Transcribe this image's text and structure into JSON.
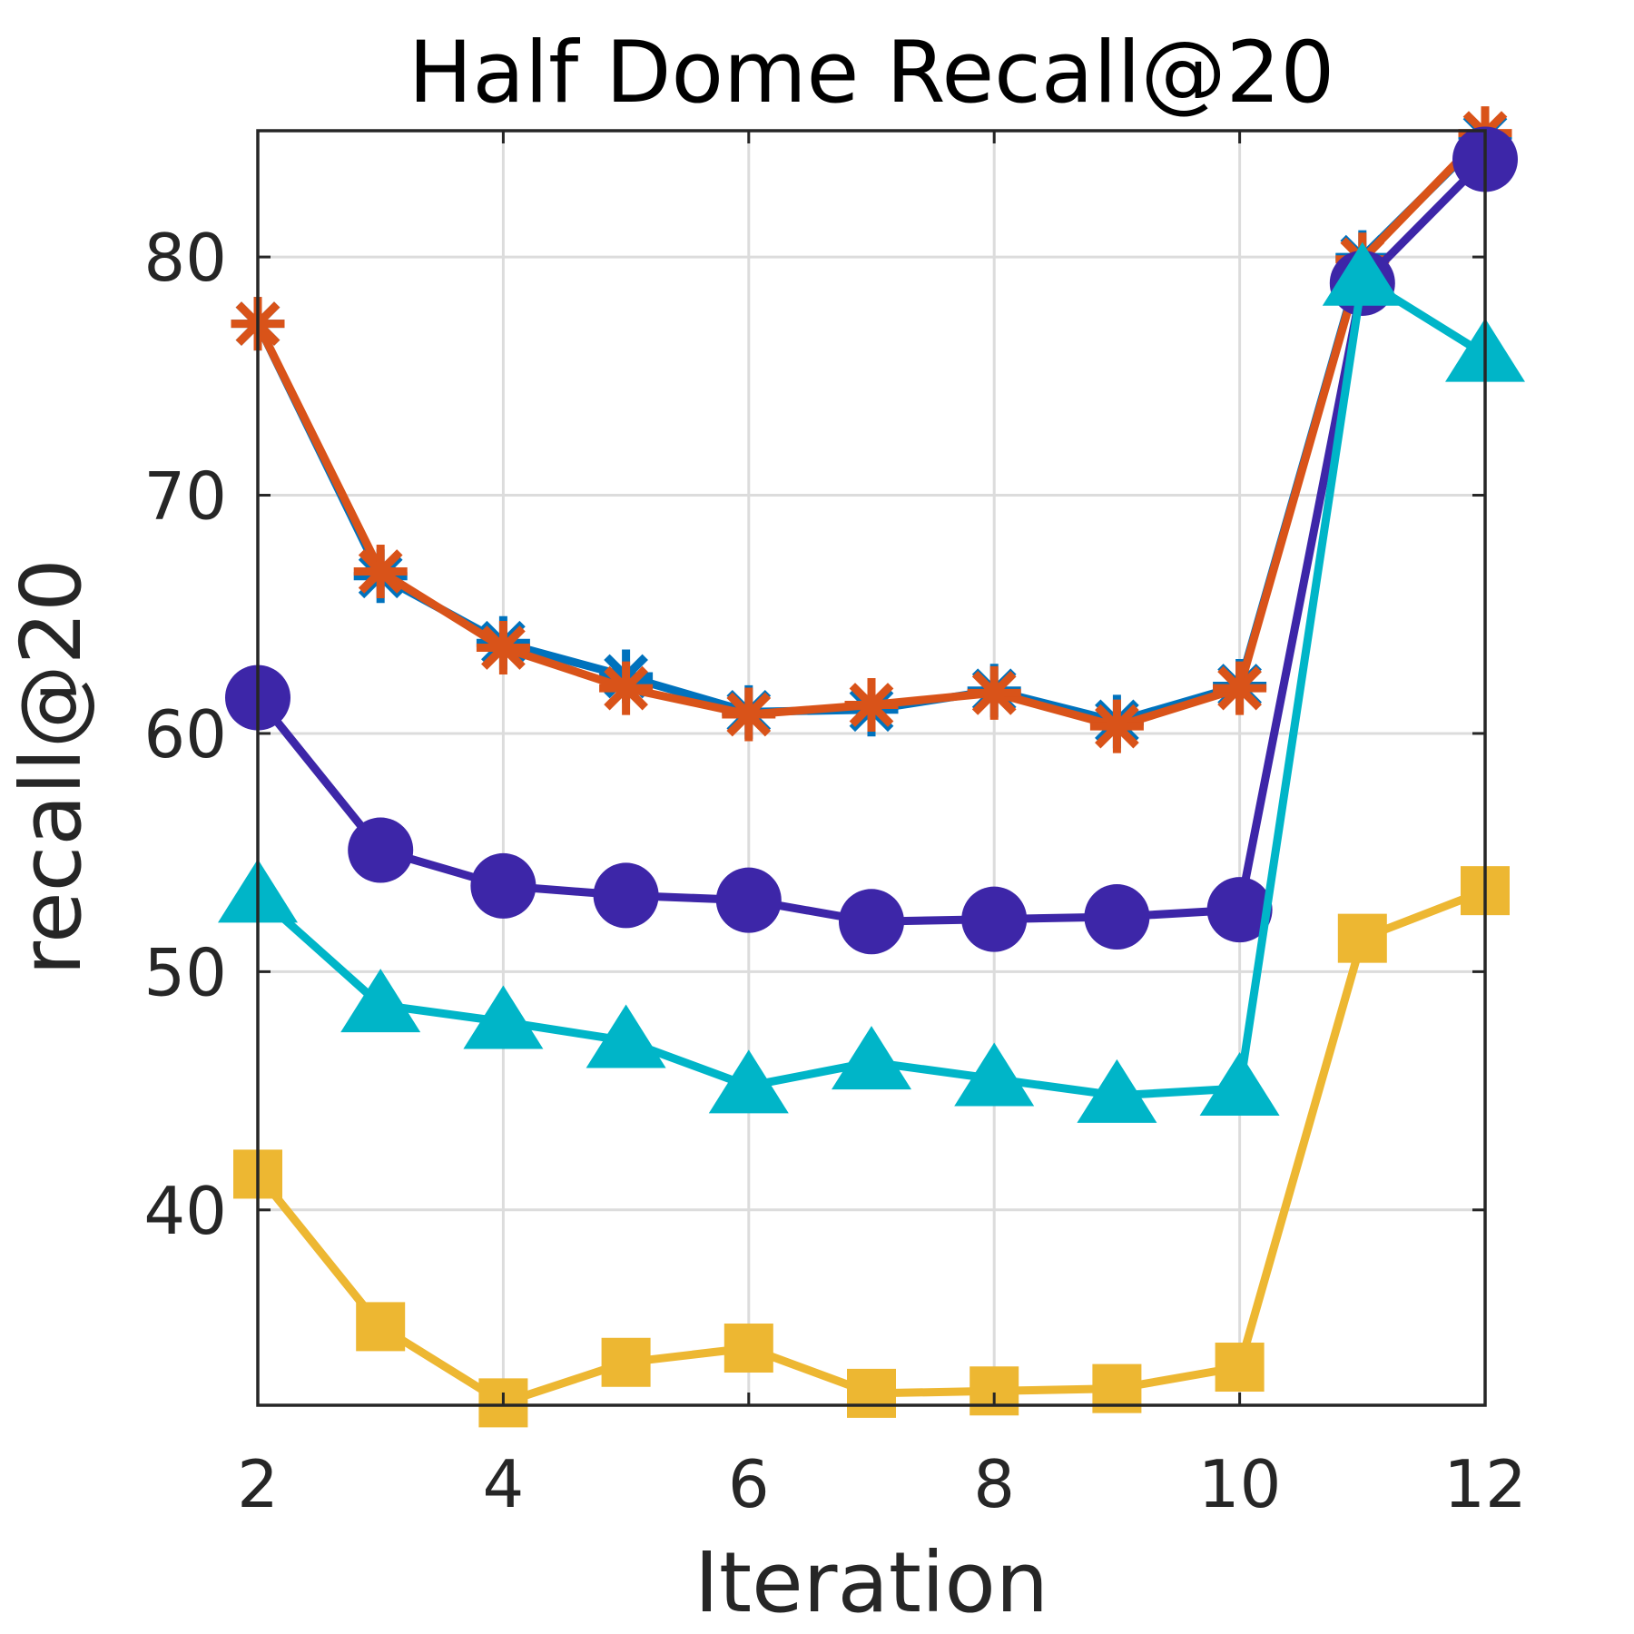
{
  "chart_data": {
    "type": "line",
    "title": "Half Dome Recall@20",
    "xlabel": "Iteration",
    "ylabel": "recall@20",
    "xlim": [
      2,
      12
    ],
    "ylim": [
      31.8,
      85.3
    ],
    "xticks": [
      2,
      4,
      6,
      8,
      10,
      12
    ],
    "yticks": [
      40,
      50,
      60,
      70,
      80
    ],
    "grid": true,
    "x": [
      2,
      3,
      4,
      5,
      6,
      7,
      8,
      9,
      10,
      11,
      12
    ],
    "series": [
      {
        "name": "series-blue-asterisk",
        "color": "#0072BD",
        "marker": "asterisk",
        "values": [
          77.2,
          66.6,
          63.8,
          62.4,
          60.9,
          61.0,
          61.8,
          60.5,
          62.0,
          80.0,
          85.1
        ]
      },
      {
        "name": "series-orange-asterisk",
        "color": "#D95319",
        "marker": "asterisk",
        "values": [
          77.2,
          66.8,
          63.6,
          61.9,
          60.8,
          61.2,
          61.7,
          60.3,
          61.9,
          79.9,
          85.2
        ]
      },
      {
        "name": "series-purple-circle",
        "color": "#3D26A8",
        "marker": "circle",
        "values": [
          61.5,
          55.1,
          53.6,
          53.2,
          53.0,
          52.1,
          52.2,
          52.3,
          52.6,
          78.9,
          84.1
        ]
      },
      {
        "name": "series-cyan-triangle",
        "color": "#00B5C8",
        "marker": "triangle",
        "values": [
          53.2,
          48.6,
          47.9,
          47.1,
          45.2,
          46.2,
          45.5,
          44.8,
          45.1,
          79.1,
          75.9
        ]
      },
      {
        "name": "series-yellow-square",
        "color": "#EDB732",
        "marker": "square",
        "values": [
          41.5,
          35.1,
          31.9,
          33.6,
          34.2,
          32.3,
          32.4,
          32.5,
          33.4,
          51.4,
          53.4
        ]
      }
    ]
  }
}
